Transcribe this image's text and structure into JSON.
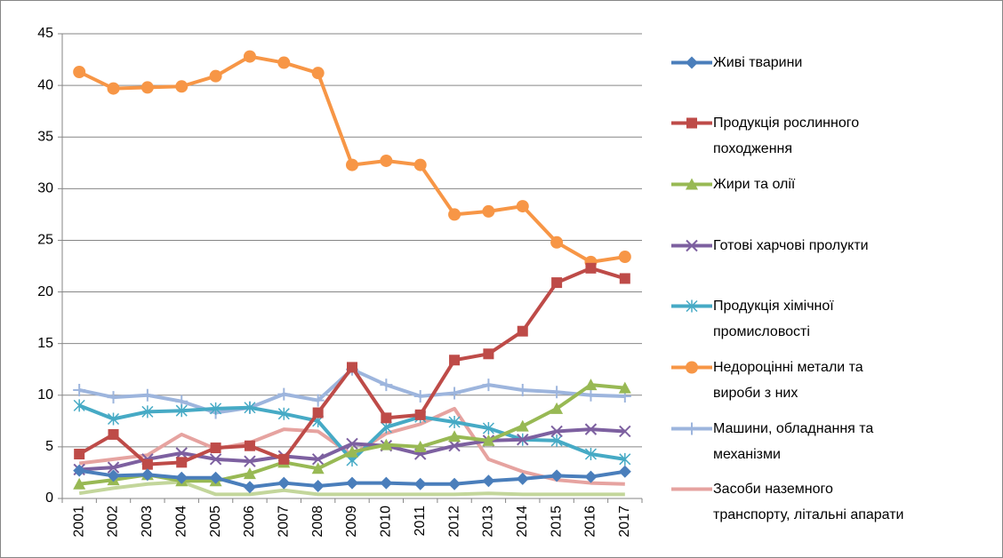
{
  "chart_data": {
    "type": "line",
    "categories": [
      "2001",
      "2002",
      "2003",
      "2004",
      "2005",
      "2006",
      "2007",
      "2008",
      "2009",
      "2010",
      "2011",
      "2012",
      "2013",
      "2014",
      "2015",
      "2016",
      "2017"
    ],
    "ylim": [
      0,
      45
    ],
    "yticks": [
      0,
      5,
      10,
      15,
      20,
      25,
      30,
      35,
      40,
      45
    ],
    "grid": true,
    "legend": "right",
    "series": [
      {
        "name": "Живі тварини",
        "color": "#4a7ebb",
        "marker": "diamond",
        "values": [
          2.7,
          2.2,
          2.3,
          2.0,
          2.0,
          1.1,
          1.5,
          1.2,
          1.5,
          1.5,
          1.4,
          1.4,
          1.7,
          1.9,
          2.2,
          2.1,
          2.6
        ]
      },
      {
        "name": "Продукція рослинного походження",
        "color": "#be4b48",
        "marker": "square",
        "values": [
          4.3,
          6.2,
          3.3,
          3.5,
          4.9,
          5.1,
          3.8,
          8.3,
          12.7,
          7.8,
          8.1,
          13.4,
          14.0,
          16.2,
          20.9,
          22.3,
          21.3
        ]
      },
      {
        "name": "Жири та олії",
        "color": "#98b954",
        "marker": "triangle",
        "values": [
          1.4,
          1.8,
          2.3,
          1.7,
          1.7,
          2.4,
          3.5,
          2.9,
          4.5,
          5.2,
          5.0,
          6.0,
          5.6,
          7.0,
          8.7,
          11.0,
          10.7
        ]
      },
      {
        "name": "Готові харчові пролукти",
        "color": "#7d60a0",
        "marker": "x",
        "values": [
          2.8,
          3.0,
          3.8,
          4.4,
          3.8,
          3.6,
          4.1,
          3.8,
          5.3,
          5.1,
          4.3,
          5.1,
          5.6,
          5.7,
          6.5,
          6.7,
          6.5
        ]
      },
      {
        "name": "Продукція хімічної промисловості",
        "color": "#46aac5",
        "marker": "star",
        "values": [
          9.0,
          7.7,
          8.4,
          8.5,
          8.7,
          8.8,
          8.2,
          7.5,
          3.7,
          6.9,
          7.9,
          7.4,
          6.8,
          5.7,
          5.6,
          4.3,
          3.8
        ]
      },
      {
        "name": "Недороцінні метали та вироби з них",
        "color": "#f79646",
        "marker": "circle",
        "values": [
          41.3,
          39.7,
          39.8,
          39.9,
          40.9,
          42.8,
          42.2,
          41.2,
          32.3,
          32.7,
          32.3,
          27.5,
          27.8,
          28.3,
          24.8,
          22.9,
          23.4
        ]
      },
      {
        "name": "Машини, обладнання та механізми",
        "color": "#9db5dd",
        "marker": "plus",
        "values": [
          10.5,
          9.8,
          10.0,
          9.4,
          8.3,
          8.8,
          10.1,
          9.5,
          12.5,
          11.0,
          9.9,
          10.2,
          11.0,
          10.5,
          10.3,
          10.0,
          9.9
        ]
      },
      {
        "name": "Засоби наземного транспорту, літальні апарати",
        "color": "#e6a3a0",
        "marker": "none",
        "values": [
          3.4,
          3.8,
          4.2,
          6.2,
          4.8,
          5.4,
          6.7,
          6.5,
          4.2,
          6.3,
          7.2,
          8.7,
          3.8,
          2.6,
          1.8,
          1.5,
          1.4
        ]
      },
      {
        "color": "#c3d69b",
        "marker": "none",
        "values": [
          0.5,
          1.0,
          1.4,
          1.6,
          0.4,
          0.4,
          0.8,
          0.4,
          0.4,
          0.4,
          0.4,
          0.4,
          0.5,
          0.4,
          0.4,
          0.4,
          0.4
        ]
      }
    ]
  }
}
